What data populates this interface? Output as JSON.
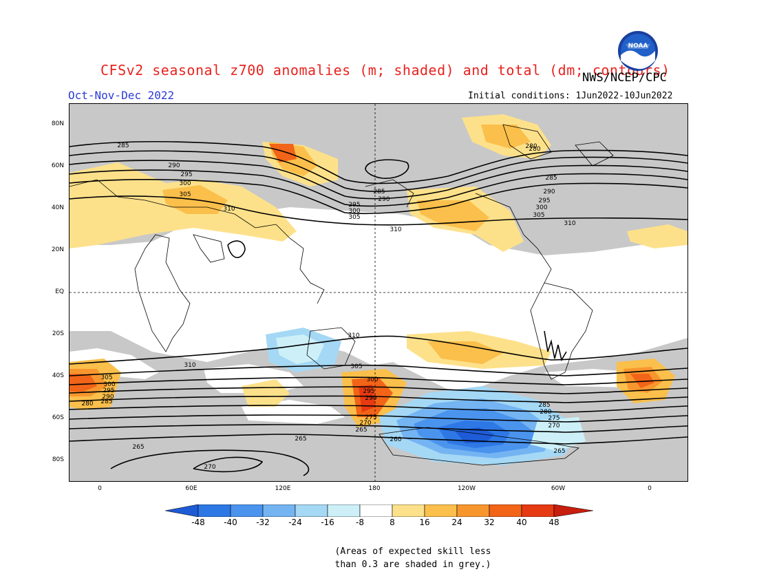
{
  "header": {
    "title": "CFSv2 seasonal z700 anomalies (m; shaded) and total (dm; contours)",
    "agency": "NWS/NCEP/CPC",
    "period": "Oct-Nov-Dec 2022",
    "initial_conditions": "Initial conditions: 1Jun2022-10Jun2022",
    "logo_text": "NOAA"
  },
  "axes": {
    "lat_labels": [
      "80N",
      "60N",
      "40N",
      "20N",
      "EQ",
      "20S",
      "40S",
      "60S",
      "80S"
    ],
    "lon_labels": [
      "0",
      "60E",
      "120E",
      "180",
      "120W",
      "60W",
      "0"
    ]
  },
  "colorbar": {
    "labels": [
      "-48",
      "-40",
      "-32",
      "-24",
      "-16",
      "-8",
      "8",
      "16",
      "24",
      "32",
      "40",
      "48"
    ],
    "colors": [
      "#1e5bd6",
      "#2e78e6",
      "#4a94ee",
      "#74b4f2",
      "#a4d8f5",
      "#cdf0f8",
      "#ffffff",
      "#fde18a",
      "#fbbf4b",
      "#f8962e",
      "#f26418",
      "#e63a12",
      "#c81e0e"
    ]
  },
  "skill_mask_color": "#c8c8c8",
  "contour_labels": [
    "285",
    "290",
    "295",
    "300",
    "305",
    "310",
    "285",
    "290",
    "295",
    "300",
    "305",
    "310",
    "280",
    "285",
    "290",
    "295",
    "300",
    "305",
    "310",
    "310",
    "310",
    "305",
    "305",
    "300",
    "300",
    "295",
    "295",
    "290",
    "290",
    "285",
    "285",
    "280",
    "280",
    "275",
    "275",
    "270",
    "270",
    "265",
    "265",
    "260",
    "265",
    "270",
    "265",
    "280"
  ],
  "note": {
    "line1": "(Areas of expected skill less",
    "line2": "than 0.3 are shaded in grey.)"
  }
}
